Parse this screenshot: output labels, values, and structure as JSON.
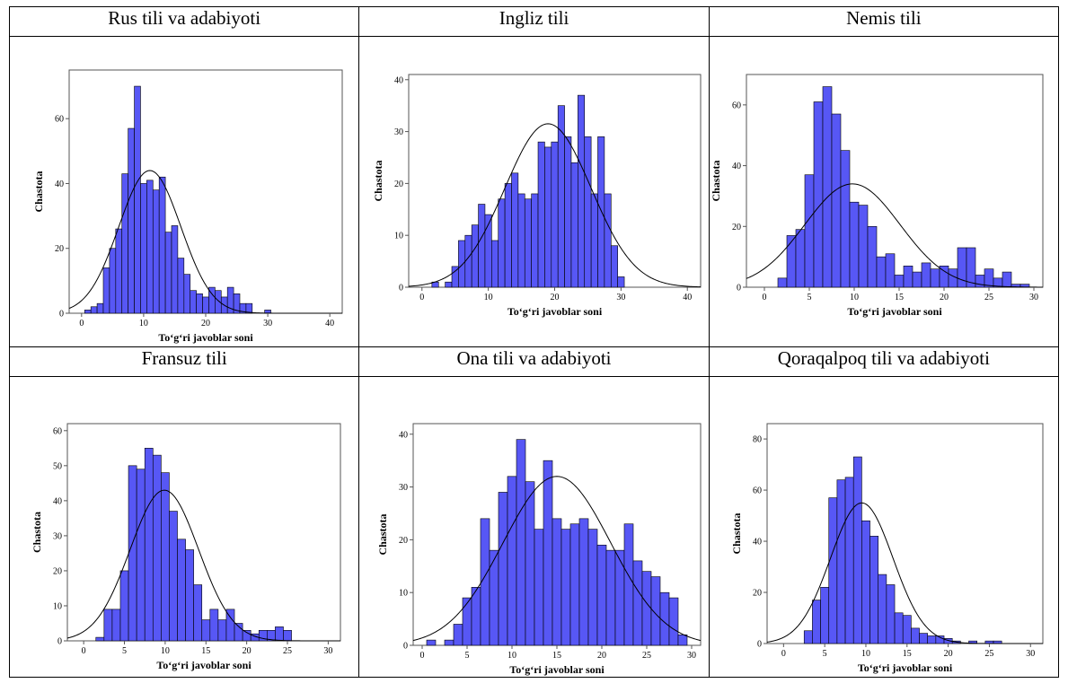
{
  "panels": [
    {
      "title": "Rus tili va adabiyoti"
    },
    {
      "title": "Ingliz tili"
    },
    {
      "title": "Nemis tili"
    },
    {
      "title": "Fransuz tili"
    },
    {
      "title": "Ona tili va adabiyoti"
    },
    {
      "title": "Qoraqalpoq tili va adabiyoti"
    }
  ],
  "colors": {
    "bar_fill": "#5757f5",
    "bar_stroke": "#000000",
    "curve": "#000000"
  },
  "chart_data": [
    {
      "type": "bar",
      "title": "Rus tili va adabiyoti",
      "xlabel": "To‘g‘ri javoblar soni",
      "ylabel": "Chastota",
      "xlim": [
        -2,
        42
      ],
      "ylim": [
        0,
        75
      ],
      "xticks": [
        0,
        10,
        20,
        30,
        40
      ],
      "yticks": [
        0,
        20,
        40,
        60
      ],
      "bin_width": 1,
      "bins": [
        {
          "x": 1,
          "count": 1
        },
        {
          "x": 2,
          "count": 2
        },
        {
          "x": 3,
          "count": 3
        },
        {
          "x": 4,
          "count": 14
        },
        {
          "x": 5,
          "count": 20
        },
        {
          "x": 6,
          "count": 26
        },
        {
          "x": 7,
          "count": 43
        },
        {
          "x": 8,
          "count": 57
        },
        {
          "x": 9,
          "count": 70
        },
        {
          "x": 10,
          "count": 40
        },
        {
          "x": 11,
          "count": 41
        },
        {
          "x": 12,
          "count": 38
        },
        {
          "x": 13,
          "count": 42
        },
        {
          "x": 14,
          "count": 25
        },
        {
          "x": 15,
          "count": 27
        },
        {
          "x": 16,
          "count": 17
        },
        {
          "x": 17,
          "count": 12
        },
        {
          "x": 18,
          "count": 7
        },
        {
          "x": 19,
          "count": 6
        },
        {
          "x": 20,
          "count": 5
        },
        {
          "x": 21,
          "count": 8
        },
        {
          "x": 22,
          "count": 7
        },
        {
          "x": 23,
          "count": 5
        },
        {
          "x": 24,
          "count": 8
        },
        {
          "x": 25,
          "count": 6
        },
        {
          "x": 26,
          "count": 3
        },
        {
          "x": 27,
          "count": 3
        },
        {
          "x": 30,
          "count": 1
        }
      ],
      "normal_curve": {
        "mean": 11,
        "sd": 5,
        "peak": 44
      }
    },
    {
      "type": "bar",
      "title": "Ingliz tili",
      "xlabel": "To‘g‘ri javoblar soni",
      "ylabel": "Chastota",
      "xlim": [
        -2,
        42
      ],
      "ylim": [
        0,
        41
      ],
      "xticks": [
        0,
        10,
        20,
        30,
        40
      ],
      "yticks": [
        0,
        10,
        20,
        30,
        40
      ],
      "bin_width": 1,
      "bins": [
        {
          "x": 2,
          "count": 1
        },
        {
          "x": 4,
          "count": 1
        },
        {
          "x": 5,
          "count": 4
        },
        {
          "x": 6,
          "count": 9
        },
        {
          "x": 7,
          "count": 10
        },
        {
          "x": 8,
          "count": 12
        },
        {
          "x": 9,
          "count": 16
        },
        {
          "x": 10,
          "count": 14
        },
        {
          "x": 11,
          "count": 9
        },
        {
          "x": 12,
          "count": 17
        },
        {
          "x": 13,
          "count": 20
        },
        {
          "x": 14,
          "count": 22
        },
        {
          "x": 15,
          "count": 18
        },
        {
          "x": 16,
          "count": 17
        },
        {
          "x": 17,
          "count": 18
        },
        {
          "x": 18,
          "count": 28
        },
        {
          "x": 19,
          "count": 27
        },
        {
          "x": 20,
          "count": 28
        },
        {
          "x": 21,
          "count": 35
        },
        {
          "x": 22,
          "count": 29
        },
        {
          "x": 23,
          "count": 24
        },
        {
          "x": 24,
          "count": 37
        },
        {
          "x": 25,
          "count": 29
        },
        {
          "x": 26,
          "count": 18
        },
        {
          "x": 27,
          "count": 29
        },
        {
          "x": 28,
          "count": 18
        },
        {
          "x": 29,
          "count": 8
        },
        {
          "x": 30,
          "count": 2
        }
      ],
      "normal_curve": {
        "mean": 19,
        "sd": 6.5,
        "peak": 31.5
      }
    },
    {
      "type": "bar",
      "title": "Nemis tili",
      "xlabel": "To‘g‘ri javoblar soni",
      "ylabel": "Chastota",
      "xlim": [
        -2,
        31
      ],
      "ylim": [
        0,
        70
      ],
      "xticks": [
        0,
        5,
        10,
        15,
        20,
        25,
        30
      ],
      "yticks": [
        0,
        20,
        40,
        60
      ],
      "bin_width": 1,
      "bins": [
        {
          "x": 2,
          "count": 3
        },
        {
          "x": 3,
          "count": 17
        },
        {
          "x": 4,
          "count": 19
        },
        {
          "x": 5,
          "count": 37
        },
        {
          "x": 6,
          "count": 61
        },
        {
          "x": 7,
          "count": 66
        },
        {
          "x": 8,
          "count": 57
        },
        {
          "x": 9,
          "count": 45
        },
        {
          "x": 10,
          "count": 28
        },
        {
          "x": 11,
          "count": 27
        },
        {
          "x": 12,
          "count": 20
        },
        {
          "x": 13,
          "count": 10
        },
        {
          "x": 14,
          "count": 11
        },
        {
          "x": 15,
          "count": 4
        },
        {
          "x": 16,
          "count": 7
        },
        {
          "x": 17,
          "count": 5
        },
        {
          "x": 18,
          "count": 8
        },
        {
          "x": 19,
          "count": 6
        },
        {
          "x": 20,
          "count": 7
        },
        {
          "x": 21,
          "count": 6
        },
        {
          "x": 22,
          "count": 13
        },
        {
          "x": 23,
          "count": 13
        },
        {
          "x": 24,
          "count": 4
        },
        {
          "x": 25,
          "count": 6
        },
        {
          "x": 26,
          "count": 3
        },
        {
          "x": 27,
          "count": 5
        },
        {
          "x": 28,
          "count": 1
        },
        {
          "x": 29,
          "count": 1
        }
      ],
      "normal_curve": {
        "mean": 9.8,
        "sd": 5.3,
        "peak": 34
      }
    },
    {
      "type": "bar",
      "title": "Fransuz tili",
      "xlabel": "To‘g‘ri javoblar soni",
      "ylabel": "Chastota",
      "xlim": [
        -2,
        31.5
      ],
      "ylim": [
        0,
        62
      ],
      "xticks": [
        0,
        5,
        10,
        15,
        20,
        25,
        30
      ],
      "yticks": [
        0,
        10,
        20,
        30,
        40,
        50,
        60
      ],
      "bin_width": 1,
      "bins": [
        {
          "x": 2,
          "count": 1
        },
        {
          "x": 3,
          "count": 9
        },
        {
          "x": 4,
          "count": 9
        },
        {
          "x": 5,
          "count": 20
        },
        {
          "x": 6,
          "count": 50
        },
        {
          "x": 7,
          "count": 49
        },
        {
          "x": 8,
          "count": 55
        },
        {
          "x": 9,
          "count": 53
        },
        {
          "x": 10,
          "count": 48
        },
        {
          "x": 11,
          "count": 37
        },
        {
          "x": 12,
          "count": 29
        },
        {
          "x": 13,
          "count": 26
        },
        {
          "x": 14,
          "count": 16
        },
        {
          "x": 15,
          "count": 6
        },
        {
          "x": 16,
          "count": 9
        },
        {
          "x": 17,
          "count": 6
        },
        {
          "x": 18,
          "count": 9
        },
        {
          "x": 19,
          "count": 5
        },
        {
          "x": 20,
          "count": 3
        },
        {
          "x": 21,
          "count": 2
        },
        {
          "x": 22,
          "count": 3
        },
        {
          "x": 23,
          "count": 3
        },
        {
          "x": 24,
          "count": 4
        },
        {
          "x": 25,
          "count": 3
        }
      ],
      "normal_curve": {
        "mean": 9.9,
        "sd": 4.2,
        "peak": 43
      }
    },
    {
      "type": "bar",
      "title": "Ona tili va adabiyoti",
      "xlabel": "To‘g‘ri javoblar soni",
      "ylabel": "Chastota",
      "xlim": [
        -1,
        31
      ],
      "ylim": [
        0,
        42
      ],
      "xticks": [
        0,
        5,
        10,
        15,
        20,
        25,
        30
      ],
      "yticks": [
        0,
        10,
        20,
        30,
        40
      ],
      "bin_width": 1,
      "bins": [
        {
          "x": 1,
          "count": 1
        },
        {
          "x": 3,
          "count": 1
        },
        {
          "x": 4,
          "count": 4
        },
        {
          "x": 5,
          "count": 9
        },
        {
          "x": 6,
          "count": 11
        },
        {
          "x": 7,
          "count": 24
        },
        {
          "x": 8,
          "count": 18
        },
        {
          "x": 9,
          "count": 29
        },
        {
          "x": 10,
          "count": 32
        },
        {
          "x": 11,
          "count": 39
        },
        {
          "x": 12,
          "count": 31
        },
        {
          "x": 13,
          "count": 22
        },
        {
          "x": 14,
          "count": 35
        },
        {
          "x": 15,
          "count": 24
        },
        {
          "x": 16,
          "count": 22
        },
        {
          "x": 17,
          "count": 23
        },
        {
          "x": 18,
          "count": 24
        },
        {
          "x": 19,
          "count": 22
        },
        {
          "x": 20,
          "count": 19
        },
        {
          "x": 21,
          "count": 18
        },
        {
          "x": 22,
          "count": 18
        },
        {
          "x": 23,
          "count": 23
        },
        {
          "x": 24,
          "count": 16
        },
        {
          "x": 25,
          "count": 14
        },
        {
          "x": 26,
          "count": 13
        },
        {
          "x": 27,
          "count": 10
        },
        {
          "x": 28,
          "count": 9
        },
        {
          "x": 29,
          "count": 2
        }
      ],
      "normal_curve": {
        "mean": 15,
        "sd": 6,
        "peak": 32
      }
    },
    {
      "type": "bar",
      "title": "Qoraqalpoq tili va adabiyoti",
      "xlabel": "To‘g‘ri javoblar soni",
      "ylabel": "Chastota",
      "xlim": [
        -2,
        31.5
      ],
      "ylim": [
        0,
        86
      ],
      "xticks": [
        0,
        5,
        10,
        15,
        20,
        25,
        30
      ],
      "yticks": [
        0,
        20,
        40,
        60,
        80
      ],
      "bin_width": 1,
      "bins": [
        {
          "x": 3,
          "count": 5
        },
        {
          "x": 4,
          "count": 17
        },
        {
          "x": 5,
          "count": 22
        },
        {
          "x": 6,
          "count": 57
        },
        {
          "x": 7,
          "count": 64
        },
        {
          "x": 8,
          "count": 65
        },
        {
          "x": 9,
          "count": 73
        },
        {
          "x": 10,
          "count": 48
        },
        {
          "x": 11,
          "count": 42
        },
        {
          "x": 12,
          "count": 27
        },
        {
          "x": 13,
          "count": 23
        },
        {
          "x": 14,
          "count": 12
        },
        {
          "x": 15,
          "count": 11
        },
        {
          "x": 16,
          "count": 6
        },
        {
          "x": 17,
          "count": 4
        },
        {
          "x": 18,
          "count": 3
        },
        {
          "x": 19,
          "count": 3
        },
        {
          "x": 20,
          "count": 2
        },
        {
          "x": 21,
          "count": 1
        },
        {
          "x": 23,
          "count": 1
        },
        {
          "x": 25,
          "count": 1
        },
        {
          "x": 26,
          "count": 1
        }
      ],
      "normal_curve": {
        "mean": 9.5,
        "sd": 3.8,
        "peak": 55
      }
    }
  ]
}
